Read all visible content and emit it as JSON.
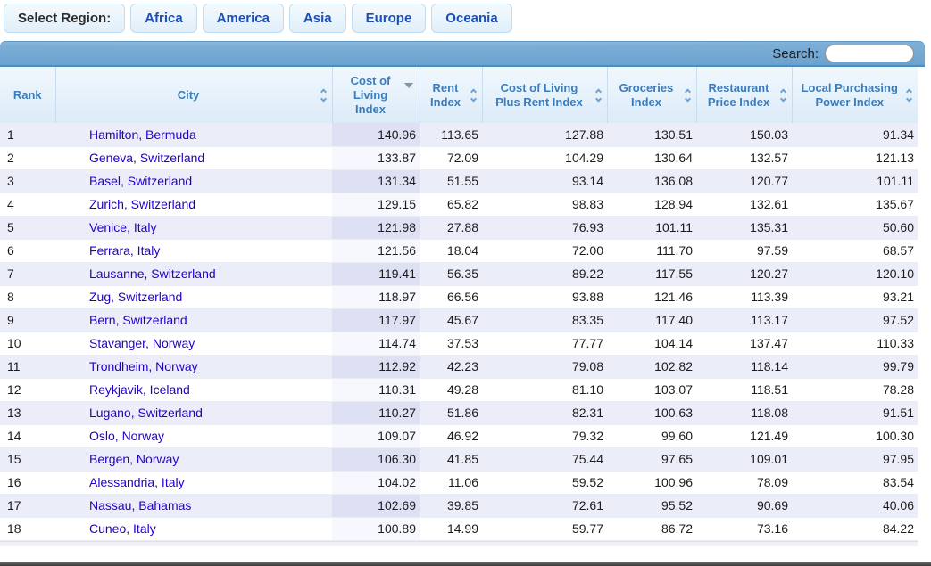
{
  "region_bar": {
    "label": "Select Region:",
    "buttons": [
      "Africa",
      "America",
      "Asia",
      "Europe",
      "Oceania"
    ]
  },
  "search": {
    "label": "Search:",
    "value": ""
  },
  "table": {
    "columns": [
      {
        "label": "Rank",
        "sort": "none",
        "sorted": false
      },
      {
        "label": "City",
        "sort": "both",
        "sorted": false
      },
      {
        "label": "Cost of Living Index",
        "sort": "desc",
        "sorted": true
      },
      {
        "label": "Rent Index",
        "sort": "both",
        "sorted": false
      },
      {
        "label": "Cost of Living Plus Rent Index",
        "sort": "both",
        "sorted": false
      },
      {
        "label": "Groceries Index",
        "sort": "both",
        "sorted": false
      },
      {
        "label": "Restaurant Price Index",
        "sort": "both",
        "sorted": false
      },
      {
        "label": "Local Purchasing Power Index",
        "sort": "both",
        "sorted": false
      }
    ],
    "rows": [
      [
        "1",
        "Hamilton, Bermuda",
        "140.96",
        "113.65",
        "127.88",
        "130.51",
        "150.03",
        "91.34"
      ],
      [
        "2",
        "Geneva, Switzerland",
        "133.87",
        "72.09",
        "104.29",
        "130.64",
        "132.57",
        "121.13"
      ],
      [
        "3",
        "Basel, Switzerland",
        "131.34",
        "51.55",
        "93.14",
        "136.08",
        "120.77",
        "101.11"
      ],
      [
        "4",
        "Zurich, Switzerland",
        "129.15",
        "65.82",
        "98.83",
        "128.94",
        "132.61",
        "135.67"
      ],
      [
        "5",
        "Venice, Italy",
        "121.98",
        "27.88",
        "76.93",
        "101.11",
        "135.31",
        "50.60"
      ],
      [
        "6",
        "Ferrara, Italy",
        "121.56",
        "18.04",
        "72.00",
        "111.70",
        "97.59",
        "68.57"
      ],
      [
        "7",
        "Lausanne, Switzerland",
        "119.41",
        "56.35",
        "89.22",
        "117.55",
        "120.27",
        "120.10"
      ],
      [
        "8",
        "Zug, Switzerland",
        "118.97",
        "66.56",
        "93.88",
        "121.46",
        "113.39",
        "93.21"
      ],
      [
        "9",
        "Bern, Switzerland",
        "117.97",
        "45.67",
        "83.35",
        "117.40",
        "113.17",
        "97.52"
      ],
      [
        "10",
        "Stavanger, Norway",
        "114.74",
        "37.53",
        "77.77",
        "104.14",
        "137.47",
        "110.33"
      ],
      [
        "11",
        "Trondheim, Norway",
        "112.92",
        "42.23",
        "79.08",
        "102.82",
        "118.14",
        "99.79"
      ],
      [
        "12",
        "Reykjavik, Iceland",
        "110.31",
        "49.28",
        "81.10",
        "103.07",
        "118.51",
        "78.28"
      ],
      [
        "13",
        "Lugano, Switzerland",
        "110.27",
        "51.86",
        "82.31",
        "100.63",
        "118.08",
        "91.51"
      ],
      [
        "14",
        "Oslo, Norway",
        "109.07",
        "46.92",
        "79.32",
        "99.60",
        "121.49",
        "100.30"
      ],
      [
        "15",
        "Bergen, Norway",
        "106.30",
        "41.85",
        "75.44",
        "97.65",
        "109.01",
        "97.95"
      ],
      [
        "16",
        "Alessandria, Italy",
        "104.02",
        "11.06",
        "59.52",
        "100.96",
        "78.09",
        "83.54"
      ],
      [
        "17",
        "Nassau, Bahamas",
        "102.69",
        "39.85",
        "72.61",
        "95.52",
        "90.69",
        "40.06"
      ],
      [
        "18",
        "Cuneo, Italy",
        "100.89",
        "14.99",
        "59.77",
        "86.72",
        "73.16",
        "84.22"
      ]
    ]
  },
  "colors": {
    "bar_blue": "#6aa2cf",
    "header_text_blue": "#3b7cba",
    "link_blue": "#2200cc",
    "alt_row": "#ebedf9",
    "sorted_cell": "#dee1f4",
    "button_text": "#1b4fb5"
  }
}
